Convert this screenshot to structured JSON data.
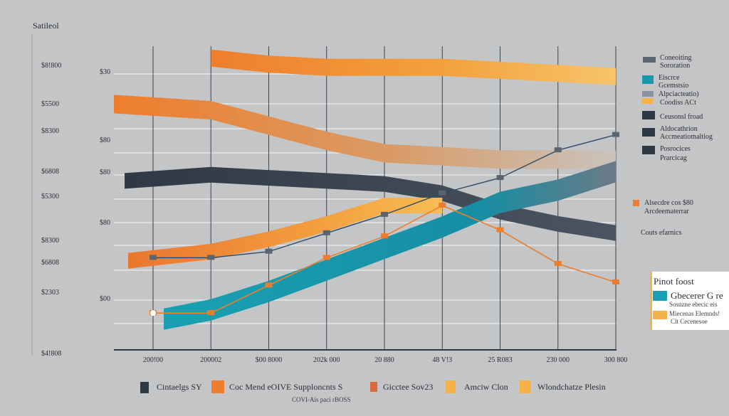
{
  "colors": {
    "background": "#c4c5c6",
    "orange": "#ee7e2c",
    "amber": "#f5b24a",
    "navy": "#2f3845",
    "teal": "#1a97a8",
    "slate": "#5a6570",
    "grid": "#eceeef"
  },
  "chart_data": {
    "type": "line",
    "title": "Satileol",
    "left_axis_labels": [
      "$8!800",
      "$5500",
      "$8300",
      "$6808",
      "$5300",
      "$8300",
      "$6808",
      "$2303",
      "$4!808"
    ],
    "inner_axis_labels": [
      "$30",
      "$80",
      "$80",
      "$80",
      "$00"
    ],
    "x_tick_labels": [
      "200!00",
      "200002",
      "$00 8000",
      "202k 000",
      "20 880",
      "48 V!3",
      "25 R083",
      "230 000",
      "300 800"
    ],
    "series": [
      {
        "name": "Orange band top",
        "values": [
          null,
          95,
          93,
          92,
          92,
          92,
          91,
          90,
          89
        ]
      },
      {
        "name": "Orange band long",
        "values": [
          80,
          78,
          73,
          68,
          64,
          63,
          62,
          62,
          62
        ]
      },
      {
        "name": "Navy band",
        "values": [
          55,
          57,
          56,
          55,
          54,
          51,
          45,
          41,
          38
        ]
      },
      {
        "name": "Orange line",
        "values": [
          12,
          12,
          21,
          30,
          37,
          47,
          39,
          28,
          22
        ]
      },
      {
        "name": "Dark line",
        "values": [
          30,
          30,
          32,
          38,
          44,
          51,
          56,
          65,
          70
        ]
      },
      {
        "name": "Orange band low",
        "values": [
          29,
          32,
          36,
          41,
          47,
          47,
          null,
          null,
          null
        ]
      },
      {
        "name": "Teal band",
        "values": [
          10,
          13,
          19,
          26,
          33,
          40,
          48,
          52,
          58
        ]
      }
    ],
    "legend_top": [
      "Coneoiting",
      "Sororation",
      "Eiscrce",
      "Gcemstsio",
      "Alpciacteatio)",
      "Coodiss ACt",
      "Ceusonsl froad",
      "Aldocathrion",
      "Accmeatiomaltiog",
      "Posrocices",
      "Prarcicag"
    ],
    "side_annotation_1": "Alsecdre cos $80",
    "side_annotation_2": "Arcdeematerrar",
    "side_annotation_3": "Couts efarnics",
    "legend_bottom": [
      "Cintaelgs SY",
      "Coc Mend eOIVE Supploncnts S",
      "Gicctee Sov23",
      "Amciw Clon",
      "Wlondchatze Plesin"
    ],
    "bottom_caption": "COVI-Ais paci rBOSS",
    "inset": {
      "title": "Pinot foost",
      "entry_1": "Gbecerer G re",
      "entry_1_sub": "Sosuzne ebecic eis",
      "entry_2": "Miecenas Elemnds!",
      "entry_2_sub": "Clt Cecenesoe"
    }
  }
}
